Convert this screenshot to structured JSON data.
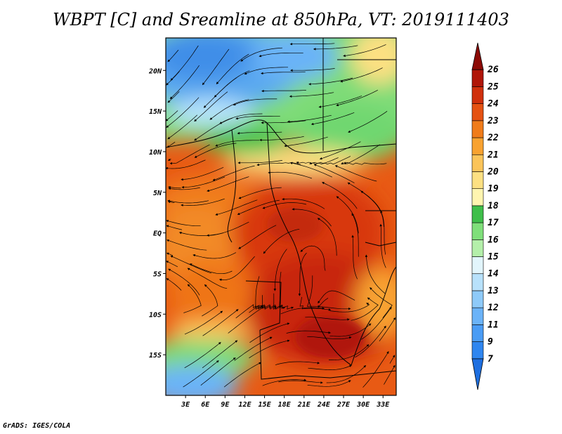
{
  "title": "WBPT [C] and Sreamline at 850hPa, VT: 2019111403",
  "credit": "GrADS: IGES/COLA",
  "map": {
    "lon_range": [
      0,
      35
    ],
    "lat_range": [
      -20,
      24
    ],
    "lon_ticks": [
      "3E",
      "6E",
      "9E",
      "12E",
      "15E",
      "18E",
      "21E",
      "24E",
      "27E",
      "30E",
      "33E"
    ],
    "lon_tick_values": [
      3,
      6,
      9,
      12,
      15,
      18,
      21,
      24,
      27,
      30,
      33
    ],
    "lat_ticks": [
      "20N",
      "15N",
      "10N",
      "5N",
      "EQ",
      "5S",
      "10S",
      "15S"
    ],
    "lat_tick_values": [
      20,
      15,
      10,
      5,
      0,
      -5,
      -10,
      -15
    ]
  },
  "colorbar": {
    "labels": [
      "7",
      "9",
      "11",
      "12",
      "13",
      "14",
      "15",
      "16",
      "17",
      "18",
      "19",
      "20",
      "21",
      "22",
      "23",
      "24",
      "25",
      "26"
    ],
    "colors": [
      "#1e6fe0",
      "#2f86f0",
      "#4a9cf5",
      "#6bb3f8",
      "#8ecaf9",
      "#b8e1fb",
      "#e2f5fc",
      "#b4efaa",
      "#7fdf7a",
      "#3fbf4a",
      "#fff5b0",
      "#fde082",
      "#fbc45a",
      "#f8a230",
      "#f07c1a",
      "#e55212",
      "#d0300c",
      "#b01608",
      "#8c0a05"
    ]
  }
}
